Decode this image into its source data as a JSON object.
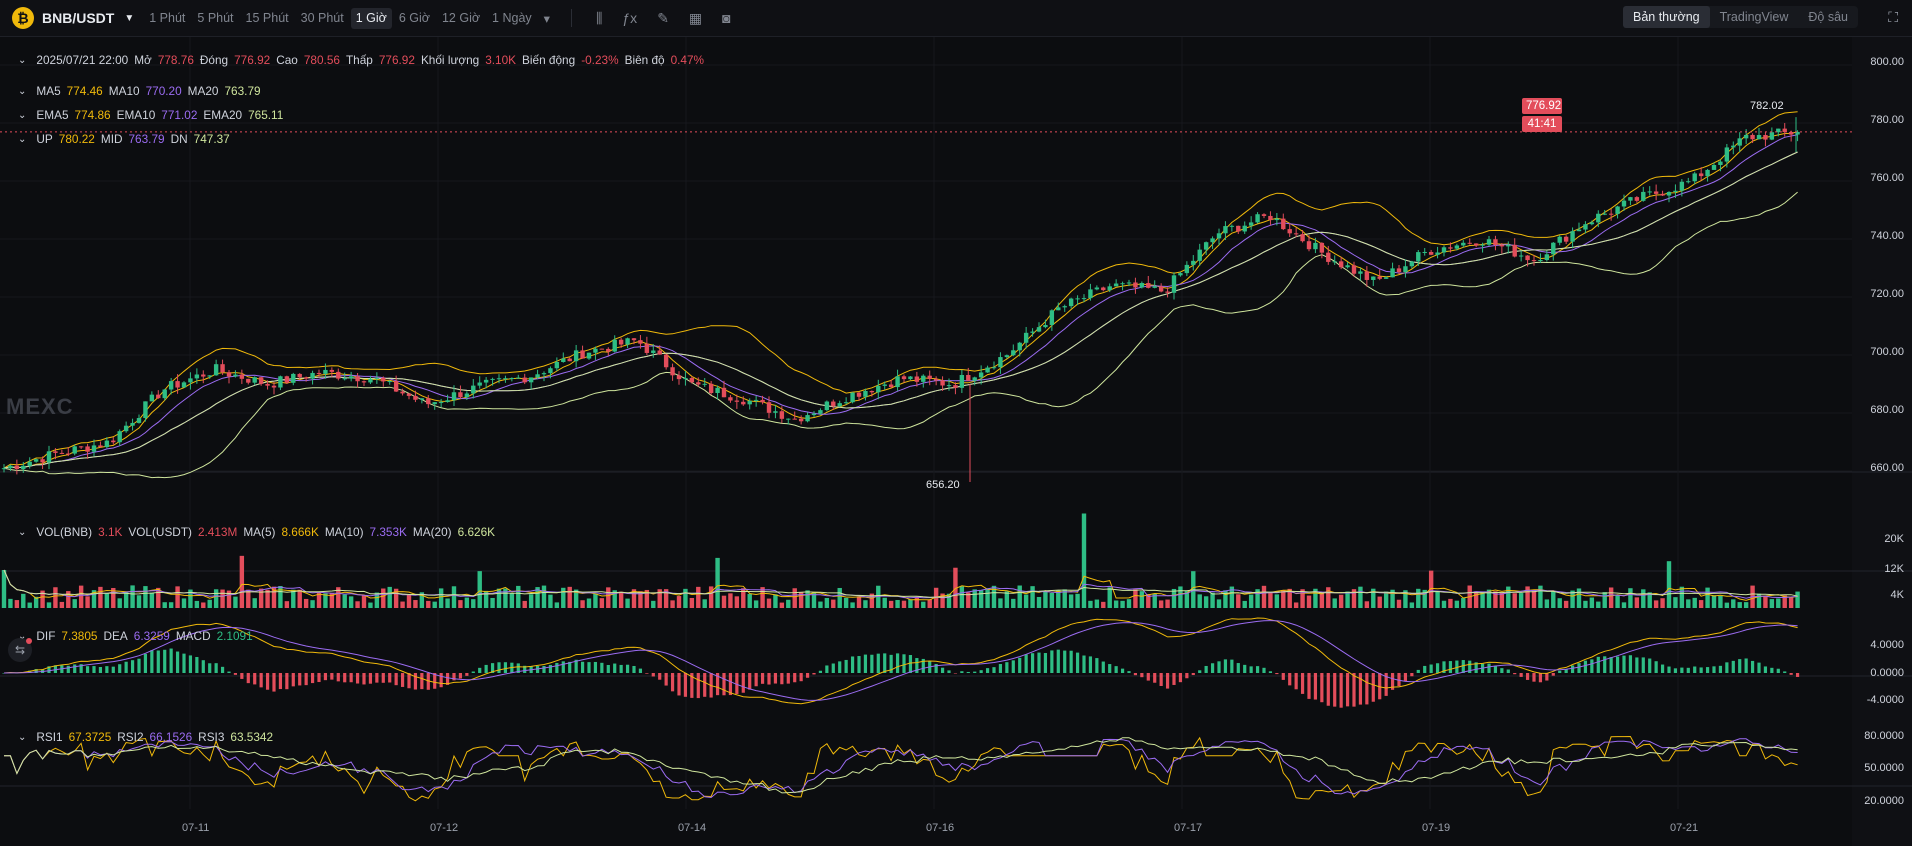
{
  "header": {
    "pair": "BNB/USDT",
    "timeframes": [
      "1 Phút",
      "5 Phút",
      "15 Phút",
      "30 Phút",
      "1 Giờ",
      "6 Giờ",
      "12 Giờ",
      "1 Ngày"
    ],
    "active_timeframe": "1 Giờ",
    "views": [
      "Bản thường",
      "TradingView",
      "Độ sâu"
    ],
    "active_view": "Bản thường",
    "icons": [
      "logo-coin-icon",
      "caret-down-icon",
      "chevron-down-icon",
      "candle-type-icon",
      "formula-icon",
      "draw-icon",
      "layout-icon",
      "camera-icon",
      "fullscreen-icon"
    ]
  },
  "ohlc_legend": {
    "time": "2025/07/21 22:00",
    "open_label": "Mở",
    "open": "778.76",
    "close_label": "Đóng",
    "close": "776.92",
    "high_label": "Cao",
    "high": "780.56",
    "low_label": "Thấp",
    "low": "776.92",
    "volume_label": "Khối lượng",
    "volume": "3.10K",
    "change_label": "Biến động",
    "change": "-0.23%",
    "amplitude_label": "Biên độ",
    "amplitude": "0.47%"
  },
  "ma_legend": {
    "ma5_label": "MA5",
    "ma5": "774.46",
    "ma10_label": "MA10",
    "ma10": "770.20",
    "ma20_label": "MA20",
    "ma20": "763.79"
  },
  "ema_legend": {
    "ema5_label": "EMA5",
    "ema5": "774.86",
    "ema10_label": "EMA10",
    "ema10": "771.02",
    "ema20_label": "EMA20",
    "ema20": "765.11"
  },
  "boll_legend": {
    "up_label": "UP",
    "up": "780.22",
    "mid_label": "MID",
    "mid": "763.79",
    "dn_label": "DN",
    "dn": "747.37"
  },
  "vol_legend": {
    "vol_bnb_label": "VOL(BNB)",
    "vol_bnb": "3.1K",
    "vol_usdt_label": "VOL(USDT)",
    "vol_usdt": "2.413M",
    "ma5_label": "MA(5)",
    "ma5": "8.666K",
    "ma10_label": "MA(10)",
    "ma10": "7.353K",
    "ma20_label": "MA(20)",
    "ma20": "6.626K"
  },
  "macd_legend": {
    "dif_label": "DIF",
    "dif": "7.3805",
    "dea_label": "DEA",
    "dea": "6.3259",
    "macd_label": "MACD",
    "macd": "2.1091"
  },
  "rsi_legend": {
    "rsi1_label": "RSI1",
    "rsi1": "67.3725",
    "rsi2_label": "RSI2",
    "rsi2": "66.1526",
    "rsi3_label": "RSI3",
    "rsi3": "63.5342"
  },
  "current_price": "776.92",
  "countdown": "41:41",
  "high_annotation": "782.02",
  "low_annotation": "656.20",
  "watermark": "MEXC",
  "colors": {
    "up": "#2ebd85",
    "down": "#e34d5b",
    "ma5": "#f0b90b",
    "ma10": "#9b6cf2",
    "ma20": "#cfe59d",
    "background": "#0c0d10"
  },
  "chart_data": {
    "type": "candlestick",
    "x_ticks": [
      "07-11",
      "07-12",
      "07-14",
      "07-16",
      "07-17",
      "07-19",
      "07-21"
    ],
    "price_axis": {
      "ticks": [
        "800.00",
        "780.00",
        "760.00",
        "740.00",
        "720.00",
        "700.00",
        "680.00",
        "660.00"
      ],
      "ylim": [
        652,
        808
      ]
    },
    "volume_axis": {
      "ticks": [
        "20K",
        "12K",
        "4K"
      ]
    },
    "macd_axis": {
      "ticks": [
        "4.0000",
        "0.0000",
        "-4.0000"
      ]
    },
    "rsi_axis": {
      "ticks": [
        "80.0000",
        "50.0000",
        "20.0000"
      ]
    },
    "price_path_anchors": [
      {
        "t": "07-10 12:00",
        "close": 661
      },
      {
        "t": "07-10 18:00",
        "close": 666
      },
      {
        "t": "07-11 00:00",
        "close": 670
      },
      {
        "t": "07-11 06:00",
        "close": 688
      },
      {
        "t": "07-11 12:00",
        "close": 695
      },
      {
        "t": "07-11 18:00",
        "close": 690
      },
      {
        "t": "07-12 00:00",
        "close": 694
      },
      {
        "t": "07-12 06:00",
        "close": 692
      },
      {
        "t": "07-12 12:00",
        "close": 683
      },
      {
        "t": "07-13 00:00",
        "close": 689
      },
      {
        "t": "07-13 12:00",
        "close": 693
      },
      {
        "t": "07-14 00:00",
        "close": 701
      },
      {
        "t": "07-14 06:00",
        "close": 705
      },
      {
        "t": "07-14 12:00",
        "close": 690
      },
      {
        "t": "07-15 00:00",
        "close": 685
      },
      {
        "t": "07-15 12:00",
        "close": 678
      },
      {
        "t": "07-16 00:00",
        "close": 686
      },
      {
        "t": "07-16 06:00",
        "close": 692
      },
      {
        "t": "07-16 12:00",
        "close": 690
      },
      {
        "t": "07-16 18:00",
        "close": 700
      },
      {
        "t": "07-17 00:00",
        "close": 716
      },
      {
        "t": "07-17 06:00",
        "close": 724
      },
      {
        "t": "07-17 12:00",
        "close": 722
      },
      {
        "t": "07-18 00:00",
        "close": 742
      },
      {
        "t": "07-18 06:00",
        "close": 748
      },
      {
        "t": "07-18 12:00",
        "close": 735
      },
      {
        "t": "07-19 00:00",
        "close": 725
      },
      {
        "t": "07-19 06:00",
        "close": 736
      },
      {
        "t": "07-19 12:00",
        "close": 740
      },
      {
        "t": "07-20 00:00",
        "close": 733
      },
      {
        "t": "07-20 12:00",
        "close": 746
      },
      {
        "t": "07-21 00:00",
        "close": 754
      },
      {
        "t": "07-21 12:00",
        "close": 760
      },
      {
        "t": "07-21 18:00",
        "close": 775
      },
      {
        "t": "07-21 22:00",
        "close": 776.92
      }
    ],
    "price_extremes": {
      "high": 782.02,
      "low": 656.2
    }
  }
}
